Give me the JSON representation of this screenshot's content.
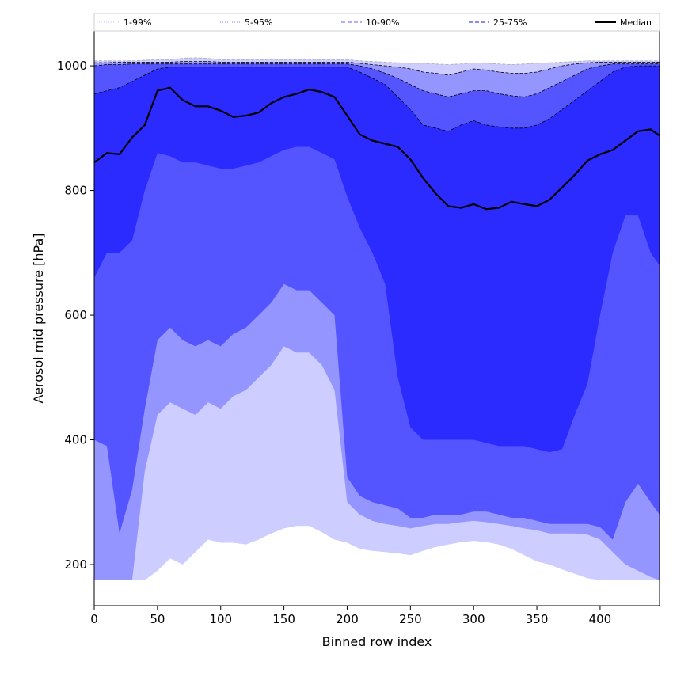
{
  "chart_data": {
    "type": "area",
    "xlabel": "Binned row index",
    "ylabel": "Aerosol mid pressure [hPa]",
    "xlim": [
      0,
      447
    ],
    "ylim": [
      134,
      1056
    ],
    "xticks": [
      0,
      50,
      100,
      150,
      200,
      250,
      300,
      350,
      400
    ],
    "yticks": [
      200,
      400,
      600,
      800,
      1000
    ],
    "grid": false,
    "legend_position": "top",
    "x": [
      0,
      10,
      20,
      30,
      40,
      50,
      60,
      70,
      80,
      90,
      100,
      110,
      120,
      130,
      140,
      150,
      160,
      170,
      180,
      190,
      200,
      210,
      220,
      230,
      240,
      250,
      260,
      270,
      280,
      290,
      300,
      310,
      320,
      330,
      340,
      350,
      360,
      370,
      380,
      390,
      400,
      410,
      420,
      430,
      440,
      447
    ],
    "series": [
      {
        "name": "Median",
        "style": "line",
        "color": "#000000",
        "values": [
          845,
          860,
          858,
          885,
          905,
          960,
          965,
          945,
          935,
          935,
          928,
          918,
          920,
          925,
          940,
          950,
          955,
          962,
          958,
          950,
          920,
          890,
          880,
          875,
          870,
          850,
          820,
          795,
          775,
          772,
          778,
          770,
          772,
          782,
          778,
          775,
          785,
          805,
          825,
          848,
          858,
          865,
          880,
          895,
          898,
          888
        ]
      },
      {
        "name": "25-75%",
        "style": "band",
        "color": "#2b2bff",
        "edge": "#000000",
        "lower": [
          660,
          700,
          700,
          720,
          800,
          860,
          855,
          845,
          845,
          840,
          835,
          835,
          840,
          845,
          855,
          865,
          870,
          870,
          860,
          850,
          790,
          740,
          700,
          650,
          500,
          420,
          400,
          400,
          400,
          400,
          400,
          395,
          390,
          390,
          390,
          385,
          380,
          385,
          440,
          490,
          600,
          700,
          760,
          760,
          700,
          680
        ],
        "upper": [
          955,
          960,
          965,
          975,
          985,
          995,
          998,
          998,
          998,
          998,
          998,
          998,
          998,
          998,
          998,
          998,
          998,
          998,
          998,
          998,
          998,
          990,
          980,
          970,
          950,
          930,
          905,
          900,
          895,
          905,
          912,
          905,
          902,
          900,
          900,
          905,
          915,
          930,
          945,
          960,
          975,
          990,
          998,
          1000,
          1000,
          1000
        ]
      },
      {
        "name": "10-90%",
        "style": "band",
        "color": "#5555ff",
        "edge": "#000000",
        "lower": [
          400,
          390,
          250,
          320,
          450,
          560,
          580,
          560,
          550,
          560,
          550,
          570,
          580,
          600,
          620,
          650,
          640,
          640,
          620,
          600,
          340,
          310,
          300,
          295,
          290,
          275,
          275,
          280,
          280,
          280,
          285,
          285,
          280,
          275,
          275,
          270,
          265,
          265,
          265,
          265,
          260,
          240,
          300,
          330,
          300,
          280
        ],
        "upper": [
          1000,
          1002,
          1002,
          1003,
          1003,
          1003,
          1003,
          1003,
          1003,
          1003,
          1003,
          1003,
          1003,
          1003,
          1003,
          1003,
          1003,
          1003,
          1003,
          1003,
          1003,
          1000,
          995,
          988,
          980,
          970,
          960,
          955,
          950,
          955,
          960,
          960,
          955,
          952,
          950,
          955,
          965,
          975,
          985,
          995,
          1000,
          1003,
          1003,
          1003,
          1003,
          1003
        ]
      },
      {
        "name": "5-95%",
        "style": "band",
        "color": "#9595ff",
        "edge": "#000000",
        "lower": [
          175,
          175,
          175,
          175,
          350,
          440,
          460,
          450,
          440,
          460,
          450,
          470,
          480,
          500,
          520,
          550,
          540,
          540,
          520,
          480,
          300,
          280,
          270,
          265,
          262,
          258,
          262,
          265,
          265,
          268,
          270,
          268,
          265,
          262,
          258,
          255,
          250,
          250,
          250,
          248,
          240,
          220,
          200,
          190,
          180,
          175
        ],
        "upper": [
          1005,
          1005,
          1006,
          1006,
          1006,
          1006,
          1006,
          1007,
          1007,
          1007,
          1006,
          1006,
          1006,
          1006,
          1006,
          1006,
          1006,
          1006,
          1006,
          1006,
          1006,
          1004,
          1002,
          1000,
          998,
          995,
          990,
          988,
          985,
          990,
          995,
          993,
          990,
          988,
          988,
          990,
          995,
          1000,
          1003,
          1005,
          1006,
          1006,
          1006,
          1006,
          1006,
          1006
        ]
      },
      {
        "name": "1-99%",
        "style": "band",
        "color": "#cdcdff",
        "edge": "#aaaaaa",
        "lower": [
          175,
          175,
          175,
          175,
          175,
          190,
          210,
          200,
          220,
          240,
          235,
          235,
          232,
          240,
          250,
          258,
          262,
          262,
          252,
          240,
          235,
          225,
          222,
          220,
          218,
          215,
          222,
          228,
          232,
          236,
          238,
          236,
          232,
          225,
          215,
          205,
          200,
          192,
          185,
          178,
          175,
          175,
          175,
          175,
          175,
          175
        ],
        "upper": [
          1008,
          1008,
          1008,
          1008,
          1009,
          1010,
          1010,
          1012,
          1013,
          1012,
          1010,
          1010,
          1010,
          1010,
          1010,
          1010,
          1010,
          1010,
          1010,
          1010,
          1010,
          1008,
          1007,
          1006,
          1005,
          1004,
          1004,
          1003,
          1002,
          1003,
          1005,
          1004,
          1003,
          1002,
          1003,
          1004,
          1005,
          1006,
          1007,
          1008,
          1008,
          1008,
          1008,
          1008,
          1008,
          1008
        ]
      }
    ],
    "legend": [
      {
        "label": "1-99%",
        "color": "#cdcdff",
        "dash": "dotted"
      },
      {
        "label": "5-95%",
        "color": "#9595ff",
        "dash": "dotted"
      },
      {
        "label": "10-90%",
        "color": "#8080ff",
        "dash": "dashed"
      },
      {
        "label": "25-75%",
        "color": "#4444ff",
        "dash": "dashed"
      },
      {
        "label": "Median",
        "color": "#000000",
        "dash": "solid"
      }
    ]
  }
}
